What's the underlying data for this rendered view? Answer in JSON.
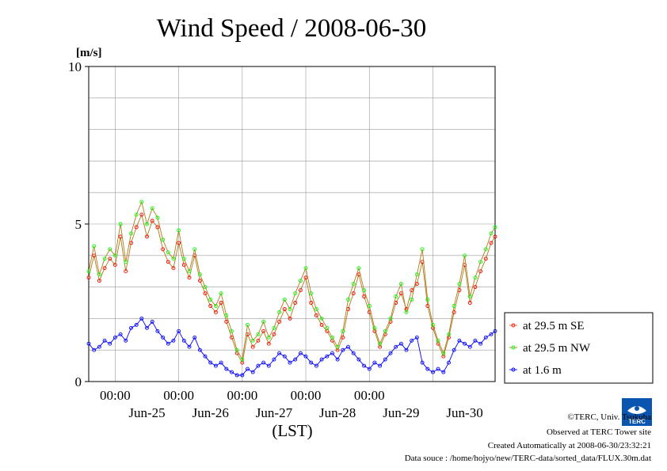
{
  "chart_data": {
    "type": "line",
    "title": "Wind Speed / 2008-06-30",
    "ylabel": "[m/s]",
    "xlabel": "(LST)",
    "ylim": [
      0,
      10
    ],
    "yticks": [
      "0",
      "5",
      "10"
    ],
    "x_time_labels": [
      "00:00",
      "00:00",
      "00:00",
      "00:00",
      "00:00"
    ],
    "x_date_labels": [
      "Jun-25",
      "Jun-26",
      "Jun-27",
      "Jun-28",
      "Jun-29",
      "Jun-30"
    ],
    "x_start": "2008-06-24 14:00",
    "x_end": "2008-06-30 23:30",
    "grid": true,
    "legend_position": "right",
    "series": [
      {
        "name": "at 29.5 m SE",
        "color": "#ff0000",
        "line_color": "#b07a1a",
        "points": [
          [
            "2008-06-24 14:00",
            3.3
          ],
          [
            "2008-06-24 16:00",
            4.0
          ],
          [
            "2008-06-24 18:00",
            3.2
          ],
          [
            "2008-06-24 20:00",
            3.6
          ],
          [
            "2008-06-24 22:00",
            3.9
          ],
          [
            "2008-06-25 00:00",
            3.7
          ],
          [
            "2008-06-25 02:00",
            4.6
          ],
          [
            "2008-06-25 04:00",
            3.5
          ],
          [
            "2008-06-25 06:00",
            4.4
          ],
          [
            "2008-06-25 08:00",
            4.9
          ],
          [
            "2008-06-25 10:00",
            5.3
          ],
          [
            "2008-06-25 12:00",
            4.6
          ],
          [
            "2008-06-25 14:00",
            5.1
          ],
          [
            "2008-06-25 16:00",
            4.9
          ],
          [
            "2008-06-25 18:00",
            4.2
          ],
          [
            "2008-06-25 20:00",
            3.8
          ],
          [
            "2008-06-25 22:00",
            3.6
          ],
          [
            "2008-06-26 00:00",
            4.4
          ],
          [
            "2008-06-26 02:00",
            3.7
          ],
          [
            "2008-06-26 04:00",
            3.3
          ],
          [
            "2008-06-26 06:00",
            4.0
          ],
          [
            "2008-06-26 08:00",
            3.2
          ],
          [
            "2008-06-26 10:00",
            2.8
          ],
          [
            "2008-06-26 12:00",
            2.4
          ],
          [
            "2008-06-26 14:00",
            2.2
          ],
          [
            "2008-06-26 16:00",
            2.5
          ],
          [
            "2008-06-26 18:00",
            1.9
          ],
          [
            "2008-06-26 20:00",
            1.4
          ],
          [
            "2008-06-26 22:00",
            0.9
          ],
          [
            "2008-06-27 00:00",
            0.6
          ],
          [
            "2008-06-27 02:00",
            1.5
          ],
          [
            "2008-06-27 04:00",
            1.1
          ],
          [
            "2008-06-27 06:00",
            1.3
          ],
          [
            "2008-06-27 08:00",
            1.6
          ],
          [
            "2008-06-27 10:00",
            1.2
          ],
          [
            "2008-06-27 12:00",
            1.5
          ],
          [
            "2008-06-27 14:00",
            1.9
          ],
          [
            "2008-06-27 16:00",
            2.3
          ],
          [
            "2008-06-27 18:00",
            2.0
          ],
          [
            "2008-06-27 20:00",
            2.5
          ],
          [
            "2008-06-27 22:00",
            2.9
          ],
          [
            "2008-06-28 00:00",
            3.3
          ],
          [
            "2008-06-28 02:00",
            2.5
          ],
          [
            "2008-06-28 04:00",
            2.1
          ],
          [
            "2008-06-28 06:00",
            1.8
          ],
          [
            "2008-06-28 08:00",
            1.6
          ],
          [
            "2008-06-28 10:00",
            1.3
          ],
          [
            "2008-06-28 12:00",
            1.0
          ],
          [
            "2008-06-28 14:00",
            1.4
          ],
          [
            "2008-06-28 16:00",
            2.3
          ],
          [
            "2008-06-28 18:00",
            2.8
          ],
          [
            "2008-06-28 20:00",
            3.4
          ],
          [
            "2008-06-28 22:00",
            2.7
          ],
          [
            "2008-06-29 00:00",
            2.2
          ],
          [
            "2008-06-29 02:00",
            1.6
          ],
          [
            "2008-06-29 04:00",
            1.1
          ],
          [
            "2008-06-29 06:00",
            1.5
          ],
          [
            "2008-06-29 08:00",
            1.9
          ],
          [
            "2008-06-29 10:00",
            2.5
          ],
          [
            "2008-06-29 12:00",
            2.8
          ],
          [
            "2008-06-29 14:00",
            2.3
          ],
          [
            "2008-06-29 16:00",
            2.9
          ],
          [
            "2008-06-29 18:00",
            3.1
          ],
          [
            "2008-06-29 20:00",
            3.8
          ],
          [
            "2008-06-29 22:00",
            2.4
          ],
          [
            "2008-06-30 00:00",
            1.7
          ],
          [
            "2008-06-30 02:00",
            1.2
          ],
          [
            "2008-06-30 04:00",
            0.8
          ],
          [
            "2008-06-30 06:00",
            1.4
          ],
          [
            "2008-06-30 08:00",
            2.2
          ],
          [
            "2008-06-30 10:00",
            2.9
          ],
          [
            "2008-06-30 12:00",
            3.7
          ],
          [
            "2008-06-30 14:00",
            2.5
          ],
          [
            "2008-06-30 16:00",
            3.0
          ],
          [
            "2008-06-30 18:00",
            3.5
          ],
          [
            "2008-06-30 20:00",
            3.9
          ],
          [
            "2008-06-30 22:00",
            4.4
          ],
          [
            "2008-06-30 23:30",
            4.6
          ]
        ]
      },
      {
        "name": "at 29.5 m NW",
        "color": "#00ff00",
        "line_color": "#b07a1a",
        "points": [
          [
            "2008-06-24 14:00",
            3.5
          ],
          [
            "2008-06-24 16:00",
            4.3
          ],
          [
            "2008-06-24 18:00",
            3.4
          ],
          [
            "2008-06-24 20:00",
            3.9
          ],
          [
            "2008-06-24 22:00",
            4.2
          ],
          [
            "2008-06-25 00:00",
            4.0
          ],
          [
            "2008-06-25 02:00",
            5.0
          ],
          [
            "2008-06-25 04:00",
            3.8
          ],
          [
            "2008-06-25 06:00",
            4.7
          ],
          [
            "2008-06-25 08:00",
            5.3
          ],
          [
            "2008-06-25 10:00",
            5.7
          ],
          [
            "2008-06-25 12:00",
            5.0
          ],
          [
            "2008-06-25 14:00",
            5.5
          ],
          [
            "2008-06-25 16:00",
            5.2
          ],
          [
            "2008-06-25 18:00",
            4.5
          ],
          [
            "2008-06-25 20:00",
            4.1
          ],
          [
            "2008-06-25 22:00",
            3.9
          ],
          [
            "2008-06-26 00:00",
            4.8
          ],
          [
            "2008-06-26 02:00",
            3.9
          ],
          [
            "2008-06-26 04:00",
            3.5
          ],
          [
            "2008-06-26 06:00",
            4.2
          ],
          [
            "2008-06-26 08:00",
            3.4
          ],
          [
            "2008-06-26 10:00",
            3.0
          ],
          [
            "2008-06-26 12:00",
            2.6
          ],
          [
            "2008-06-26 14:00",
            2.4
          ],
          [
            "2008-06-26 16:00",
            2.8
          ],
          [
            "2008-06-26 18:00",
            2.1
          ],
          [
            "2008-06-26 20:00",
            1.6
          ],
          [
            "2008-06-26 22:00",
            1.0
          ],
          [
            "2008-06-27 00:00",
            0.7
          ],
          [
            "2008-06-27 02:00",
            1.8
          ],
          [
            "2008-06-27 04:00",
            1.3
          ],
          [
            "2008-06-27 06:00",
            1.5
          ],
          [
            "2008-06-27 08:00",
            1.9
          ],
          [
            "2008-06-27 10:00",
            1.4
          ],
          [
            "2008-06-27 12:00",
            1.7
          ],
          [
            "2008-06-27 14:00",
            2.2
          ],
          [
            "2008-06-27 16:00",
            2.6
          ],
          [
            "2008-06-27 18:00",
            2.3
          ],
          [
            "2008-06-27 20:00",
            2.8
          ],
          [
            "2008-06-27 22:00",
            3.2
          ],
          [
            "2008-06-28 00:00",
            3.6
          ],
          [
            "2008-06-28 02:00",
            2.8
          ],
          [
            "2008-06-28 04:00",
            2.3
          ],
          [
            "2008-06-28 06:00",
            2.0
          ],
          [
            "2008-06-28 08:00",
            1.7
          ],
          [
            "2008-06-28 10:00",
            1.4
          ],
          [
            "2008-06-28 12:00",
            1.1
          ],
          [
            "2008-06-28 14:00",
            1.6
          ],
          [
            "2008-06-28 16:00",
            2.6
          ],
          [
            "2008-06-28 18:00",
            3.1
          ],
          [
            "2008-06-28 20:00",
            3.6
          ],
          [
            "2008-06-28 22:00",
            2.9
          ],
          [
            "2008-06-29 00:00",
            2.4
          ],
          [
            "2008-06-29 02:00",
            1.7
          ],
          [
            "2008-06-29 04:00",
            1.2
          ],
          [
            "2008-06-29 06:00",
            1.6
          ],
          [
            "2008-06-29 08:00",
            2.0
          ],
          [
            "2008-06-29 10:00",
            2.7
          ],
          [
            "2008-06-29 12:00",
            3.1
          ],
          [
            "2008-06-29 14:00",
            2.2
          ],
          [
            "2008-06-29 16:00",
            2.6
          ],
          [
            "2008-06-29 18:00",
            3.4
          ],
          [
            "2008-06-29 20:00",
            4.2
          ],
          [
            "2008-06-29 22:00",
            2.6
          ],
          [
            "2008-06-30 00:00",
            1.8
          ],
          [
            "2008-06-30 02:00",
            1.3
          ],
          [
            "2008-06-30 04:00",
            0.9
          ],
          [
            "2008-06-30 06:00",
            1.5
          ],
          [
            "2008-06-30 08:00",
            2.4
          ],
          [
            "2008-06-30 10:00",
            3.1
          ],
          [
            "2008-06-30 12:00",
            4.0
          ],
          [
            "2008-06-30 14:00",
            2.7
          ],
          [
            "2008-06-30 16:00",
            3.3
          ],
          [
            "2008-06-30 18:00",
            3.8
          ],
          [
            "2008-06-30 20:00",
            4.2
          ],
          [
            "2008-06-30 22:00",
            4.7
          ],
          [
            "2008-06-30 23:30",
            4.9
          ]
        ]
      },
      {
        "name": "at 1.6 m",
        "color": "#0000ff",
        "line_color": "#0000ff",
        "points": [
          [
            "2008-06-24 14:00",
            1.2
          ],
          [
            "2008-06-24 16:00",
            1.0
          ],
          [
            "2008-06-24 18:00",
            1.1
          ],
          [
            "2008-06-24 20:00",
            1.3
          ],
          [
            "2008-06-24 22:00",
            1.2
          ],
          [
            "2008-06-25 00:00",
            1.4
          ],
          [
            "2008-06-25 02:00",
            1.5
          ],
          [
            "2008-06-25 04:00",
            1.3
          ],
          [
            "2008-06-25 06:00",
            1.7
          ],
          [
            "2008-06-25 08:00",
            1.8
          ],
          [
            "2008-06-25 10:00",
            2.0
          ],
          [
            "2008-06-25 12:00",
            1.7
          ],
          [
            "2008-06-25 14:00",
            1.9
          ],
          [
            "2008-06-25 16:00",
            1.6
          ],
          [
            "2008-06-25 18:00",
            1.4
          ],
          [
            "2008-06-25 20:00",
            1.2
          ],
          [
            "2008-06-25 22:00",
            1.3
          ],
          [
            "2008-06-26 00:00",
            1.6
          ],
          [
            "2008-06-26 02:00",
            1.3
          ],
          [
            "2008-06-26 04:00",
            1.1
          ],
          [
            "2008-06-26 06:00",
            1.4
          ],
          [
            "2008-06-26 08:00",
            1.0
          ],
          [
            "2008-06-26 10:00",
            0.8
          ],
          [
            "2008-06-26 12:00",
            0.6
          ],
          [
            "2008-06-26 14:00",
            0.5
          ],
          [
            "2008-06-26 16:00",
            0.6
          ],
          [
            "2008-06-26 18:00",
            0.4
          ],
          [
            "2008-06-26 20:00",
            0.3
          ],
          [
            "2008-06-26 22:00",
            0.2
          ],
          [
            "2008-06-27 00:00",
            0.2
          ],
          [
            "2008-06-27 02:00",
            0.4
          ],
          [
            "2008-06-27 04:00",
            0.3
          ],
          [
            "2008-06-27 06:00",
            0.5
          ],
          [
            "2008-06-27 08:00",
            0.6
          ],
          [
            "2008-06-27 10:00",
            0.5
          ],
          [
            "2008-06-27 12:00",
            0.7
          ],
          [
            "2008-06-27 14:00",
            0.9
          ],
          [
            "2008-06-27 16:00",
            0.8
          ],
          [
            "2008-06-27 18:00",
            0.6
          ],
          [
            "2008-06-27 20:00",
            0.7
          ],
          [
            "2008-06-27 22:00",
            0.9
          ],
          [
            "2008-06-28 00:00",
            0.8
          ],
          [
            "2008-06-28 02:00",
            0.6
          ],
          [
            "2008-06-28 04:00",
            0.5
          ],
          [
            "2008-06-28 06:00",
            0.7
          ],
          [
            "2008-06-28 08:00",
            0.8
          ],
          [
            "2008-06-28 10:00",
            0.9
          ],
          [
            "2008-06-28 12:00",
            0.7
          ],
          [
            "2008-06-28 14:00",
            1.0
          ],
          [
            "2008-06-28 16:00",
            1.1
          ],
          [
            "2008-06-28 18:00",
            0.9
          ],
          [
            "2008-06-28 20:00",
            0.7
          ],
          [
            "2008-06-28 22:00",
            0.5
          ],
          [
            "2008-06-29 00:00",
            0.4
          ],
          [
            "2008-06-29 02:00",
            0.6
          ],
          [
            "2008-06-29 04:00",
            0.5
          ],
          [
            "2008-06-29 06:00",
            0.7
          ],
          [
            "2008-06-29 08:00",
            0.9
          ],
          [
            "2008-06-29 10:00",
            1.1
          ],
          [
            "2008-06-29 12:00",
            1.2
          ],
          [
            "2008-06-29 14:00",
            1.0
          ],
          [
            "2008-06-29 16:00",
            1.3
          ],
          [
            "2008-06-29 18:00",
            1.4
          ],
          [
            "2008-06-29 20:00",
            0.6
          ],
          [
            "2008-06-29 22:00",
            0.4
          ],
          [
            "2008-06-30 00:00",
            0.3
          ],
          [
            "2008-06-30 02:00",
            0.4
          ],
          [
            "2008-06-30 04:00",
            0.3
          ],
          [
            "2008-06-30 06:00",
            0.6
          ],
          [
            "2008-06-30 08:00",
            1.0
          ],
          [
            "2008-06-30 10:00",
            1.3
          ],
          [
            "2008-06-30 12:00",
            1.2
          ],
          [
            "2008-06-30 14:00",
            1.1
          ],
          [
            "2008-06-30 16:00",
            1.3
          ],
          [
            "2008-06-30 18:00",
            1.2
          ],
          [
            "2008-06-30 20:00",
            1.4
          ],
          [
            "2008-06-30 22:00",
            1.5
          ],
          [
            "2008-06-30 23:30",
            1.6
          ]
        ]
      }
    ]
  },
  "logo_text": "TERC",
  "credits": [
    "©TERC, Univ. Tsukuba",
    "Observed at TERC Tower site",
    "Created Automatically at 2008-06-30/23:32:21",
    "Data souce : /home/hojyo/new/TERC-data/sorted_data/FLUX.30m.dat"
  ]
}
